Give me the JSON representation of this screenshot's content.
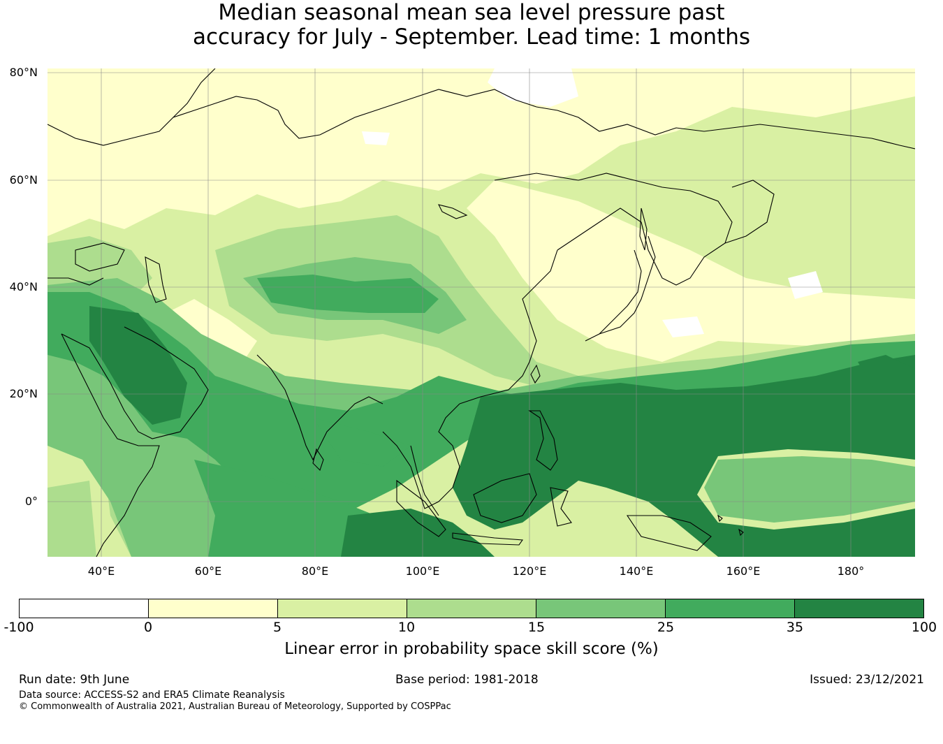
{
  "title": {
    "line1": "Median seasonal mean sea level pressure past",
    "line2": "accuracy for July - September. Lead time: 1 months"
  },
  "map": {
    "lat_ticks": [
      "80°N",
      "60°N",
      "40°N",
      "20°N",
      "0°"
    ],
    "lon_ticks": [
      "40°E",
      "60°E",
      "80°E",
      "100°E",
      "120°E",
      "140°E",
      "160°E",
      "180°"
    ],
    "extent": {
      "lon_min": 30,
      "lon_max": 192,
      "lat_min": -11,
      "lat_max": 80
    },
    "gridlines": true,
    "land_outline_color": "#000000"
  },
  "legend": {
    "label": "Linear error in probability space skill score (%)",
    "ticks": [
      "-100",
      "0",
      "5",
      "10",
      "15",
      "25",
      "35",
      "100"
    ],
    "colors": [
      "#ffffff",
      "#ffffcc",
      "#d9f0a3",
      "#addd8e",
      "#78c679",
      "#41ab5d",
      "#238443"
    ]
  },
  "footer": {
    "run_date": "Run date: 9th June",
    "base_period": "Base period: 1981-2018",
    "issued": "Issued: 23/12/2021",
    "data_source": "Data source: ACCESS-S2 and ERA5 Climate Reanalysis",
    "copyright": "© Commonwealth of Australia 2021, Australian Bureau of Meteorology, Supported by COSPPac"
  }
}
